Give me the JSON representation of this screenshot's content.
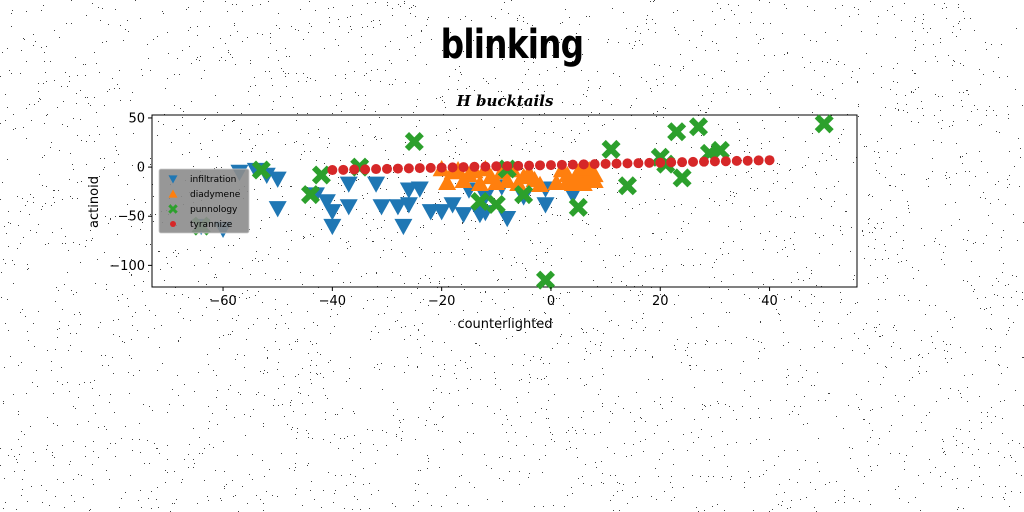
{
  "figure": {
    "suptitle": "blinking"
  },
  "chart_data": {
    "type": "scatter",
    "title": "H bucktails",
    "xlabel": "counterlighted",
    "ylabel": "actinoid",
    "xlim": [
      -73,
      56
    ],
    "ylim": [
      -122,
      53
    ],
    "xticks": [
      -60,
      -40,
      -20,
      0,
      20,
      40
    ],
    "yticks": [
      50,
      0,
      -50,
      -100
    ],
    "grid": false,
    "legend": {
      "position": "center-left",
      "entries": [
        "infiltration",
        "diadymene",
        "punnology",
        "tyrannize"
      ]
    },
    "series": [
      {
        "name": "infiltration",
        "marker": "triangle-down",
        "color": "#1f77b4",
        "points": [
          [
            -64,
            -60
          ],
          [
            -60,
            -63
          ],
          [
            -57,
            -5
          ],
          [
            -54,
            -3
          ],
          [
            -52,
            -8
          ],
          [
            -50,
            -12
          ],
          [
            -50,
            -42
          ],
          [
            -43,
            -28
          ],
          [
            -41,
            -35
          ],
          [
            -40,
            -45
          ],
          [
            -40,
            -60
          ],
          [
            -37,
            -17
          ],
          [
            -37,
            -40
          ],
          [
            -32,
            -17
          ],
          [
            -31,
            -40
          ],
          [
            -28,
            -40
          ],
          [
            -27,
            -60
          ],
          [
            -26,
            -23
          ],
          [
            -26,
            -38
          ],
          [
            -24,
            -22
          ],
          [
            -22,
            -45
          ],
          [
            -20,
            -45
          ],
          [
            -18,
            -38
          ],
          [
            -16,
            -48
          ],
          [
            -15,
            -23
          ],
          [
            -13,
            -48
          ],
          [
            -12,
            -30
          ],
          [
            -12,
            -46
          ],
          [
            -9,
            -20
          ],
          [
            -8,
            -52
          ],
          [
            -5,
            -30
          ],
          [
            -1,
            -22
          ],
          [
            -1,
            -38
          ],
          [
            4,
            -28
          ]
        ]
      },
      {
        "name": "diadymene",
        "marker": "triangle-up",
        "color": "#ff7f0e",
        "points": [
          [
            -20,
            -2
          ],
          [
            -19,
            -16
          ],
          [
            -18,
            -5
          ],
          [
            -17,
            -3
          ],
          [
            -16,
            -14
          ],
          [
            -15,
            -8
          ],
          [
            -14,
            -4
          ],
          [
            -13,
            -17
          ],
          [
            -12,
            -2
          ],
          [
            -11,
            -10
          ],
          [
            -10,
            -16
          ],
          [
            -9,
            -5
          ],
          [
            -8,
            -14
          ],
          [
            -7,
            -3
          ],
          [
            -6,
            -17
          ],
          [
            -5,
            -10
          ],
          [
            -4,
            -6
          ],
          [
            -3,
            -13
          ],
          [
            -2,
            -18
          ],
          [
            1,
            -16
          ],
          [
            2,
            -3
          ],
          [
            3,
            -8
          ],
          [
            3,
            -15
          ],
          [
            4,
            -17
          ],
          [
            5,
            -5
          ],
          [
            5,
            -12
          ],
          [
            6,
            -17
          ],
          [
            7,
            -3
          ],
          [
            7,
            -10
          ],
          [
            8,
            -14
          ],
          [
            8,
            -8
          ],
          [
            6,
            -1
          ]
        ]
      },
      {
        "name": "punnology",
        "marker": "x",
        "color": "#2ca02c",
        "points": [
          [
            -64,
            -60
          ],
          [
            -53,
            -3
          ],
          [
            -44,
            -28
          ],
          [
            -42,
            -8
          ],
          [
            -35,
            0
          ],
          [
            -25,
            26
          ],
          [
            -13,
            -35
          ],
          [
            -10,
            -38
          ],
          [
            -8,
            -2
          ],
          [
            -5,
            -28
          ],
          [
            -1,
            -115
          ],
          [
            5,
            -41
          ],
          [
            11,
            18
          ],
          [
            14,
            -19
          ],
          [
            20,
            10
          ],
          [
            21,
            3
          ],
          [
            23,
            36
          ],
          [
            24,
            -11
          ],
          [
            27,
            41
          ],
          [
            29,
            14
          ],
          [
            31,
            17
          ],
          [
            50,
            44
          ]
        ]
      },
      {
        "name": "tyrannize",
        "marker": "circle",
        "color": "#d62728",
        "points": [
          [
            -40,
            -3.0
          ],
          [
            -38,
            -2.8
          ],
          [
            -36,
            -2.5
          ],
          [
            -34,
            -2.3
          ],
          [
            -32,
            -2.0
          ],
          [
            -30,
            -1.8
          ],
          [
            -28,
            -1.5
          ],
          [
            -26,
            -1.3
          ],
          [
            -24,
            -1.0
          ],
          [
            -22,
            -0.8
          ],
          [
            -20,
            -0.5
          ],
          [
            -18,
            -0.3
          ],
          [
            -16,
            0.0
          ],
          [
            -14,
            0.3
          ],
          [
            -12,
            0.5
          ],
          [
            -10,
            0.8
          ],
          [
            -8,
            1.0
          ],
          [
            -6,
            1.3
          ],
          [
            -4,
            1.5
          ],
          [
            -2,
            1.8
          ],
          [
            0,
            2.0
          ],
          [
            2,
            2.3
          ],
          [
            4,
            2.5
          ],
          [
            6,
            2.8
          ],
          [
            8,
            3.0
          ],
          [
            10,
            3.3
          ],
          [
            12,
            3.5
          ],
          [
            14,
            3.8
          ],
          [
            16,
            4.0
          ],
          [
            18,
            4.3
          ],
          [
            20,
            4.5
          ],
          [
            22,
            4.8
          ],
          [
            24,
            5.0
          ],
          [
            26,
            5.3
          ],
          [
            28,
            5.5
          ],
          [
            30,
            5.8
          ],
          [
            32,
            6.0
          ],
          [
            34,
            6.3
          ],
          [
            36,
            6.5
          ],
          [
            38,
            6.8
          ],
          [
            40,
            7.0
          ]
        ]
      }
    ]
  }
}
